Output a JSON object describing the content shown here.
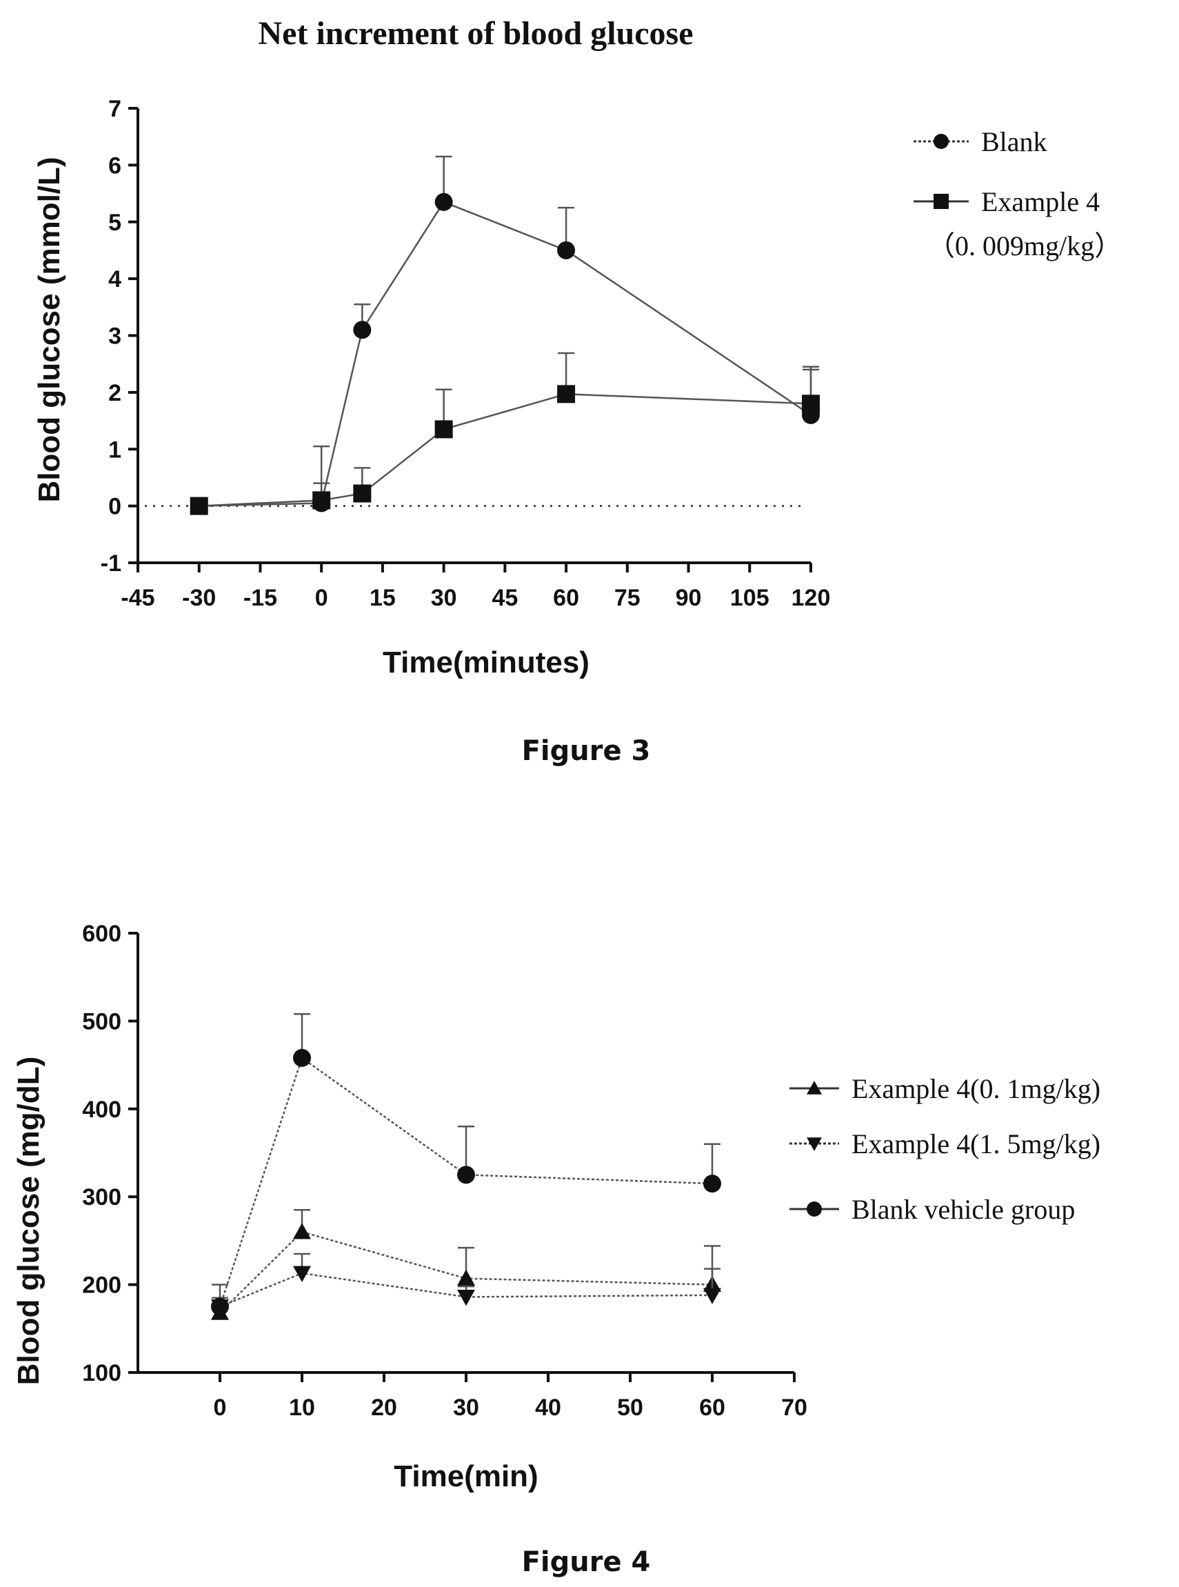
{
  "chart_data": [
    {
      "type": "line",
      "title": "Net increment of blood glucose",
      "xlabel": "Time(minutes)",
      "ylabel": "Blood glucose (mmol/L)",
      "caption": "Figure 3",
      "xlim": [
        -45,
        120
      ],
      "ylim": [
        -1,
        7
      ],
      "xticks": [
        -45,
        -30,
        -15,
        0,
        15,
        30,
        45,
        60,
        75,
        90,
        105,
        120
      ],
      "yticks": [
        -1,
        0,
        1,
        2,
        3,
        4,
        5,
        6,
        7
      ],
      "reference_line_y": 0,
      "legend_position": "right",
      "series": [
        {
          "name": "Blank",
          "marker": "circle",
          "x": [
            -30,
            0,
            10,
            30,
            60,
            120
          ],
          "y": [
            0,
            0.05,
            3.1,
            5.35,
            4.5,
            1.6
          ],
          "error": [
            0,
            1.0,
            0.45,
            0.8,
            0.75,
            0.85
          ]
        },
        {
          "name": "Example 4",
          "name_line2": "（0. 009mg/kg）",
          "marker": "square",
          "x": [
            -30,
            0,
            10,
            30,
            60,
            120
          ],
          "y": [
            0,
            0.1,
            0.22,
            1.35,
            1.97,
            1.8
          ],
          "error": [
            0,
            0.3,
            0.45,
            0.7,
            0.72,
            0.6
          ]
        }
      ]
    },
    {
      "type": "line",
      "xlabel": "Time(min)",
      "ylabel": "Blood glucose (mg/dL)",
      "caption": "Figure 4",
      "xlim": [
        -10,
        70
      ],
      "ylim": [
        100,
        600
      ],
      "xticks": [
        0,
        10,
        20,
        30,
        40,
        50,
        60,
        70
      ],
      "yticks": [
        100,
        200,
        300,
        400,
        500,
        600
      ],
      "legend_position": "right",
      "series": [
        {
          "name": "Example 4(0. 1mg/kg)",
          "marker": "triangle-up",
          "x": [
            0,
            10,
            30,
            60
          ],
          "y": [
            168,
            260,
            207,
            200
          ],
          "error": [
            10,
            25,
            35,
            44
          ]
        },
        {
          "name": "Example 4(1. 5mg/kg)",
          "marker": "triangle-down",
          "x": [
            0,
            10,
            30,
            60
          ],
          "y": [
            175,
            213,
            186,
            188
          ],
          "error": [
            10,
            22,
            12,
            30
          ]
        },
        {
          "name": "Blank vehicle group",
          "marker": "circle",
          "x": [
            0,
            10,
            30,
            60
          ],
          "y": [
            175,
            458,
            325,
            315
          ],
          "error": [
            25,
            50,
            55,
            45
          ]
        }
      ]
    }
  ]
}
